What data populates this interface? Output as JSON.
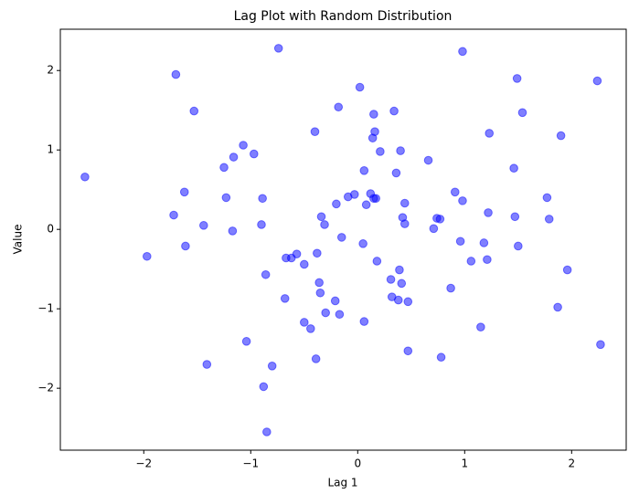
{
  "chart_data": {
    "type": "scatter",
    "title": "Lag Plot with Random Distribution",
    "x_label": "Lag 1",
    "y_label": "Value",
    "color": "#0000ff",
    "alpha": 0.5,
    "xlim": [
      -2.78,
      2.51
    ],
    "ylim": [
      -2.78,
      2.52
    ],
    "xticks": [
      {
        "value": -2,
        "label": "−2"
      },
      {
        "value": -1,
        "label": "−1"
      },
      0,
      1,
      2
    ],
    "yticks": [
      {
        "value": -2,
        "label": "−2"
      },
      {
        "value": -1,
        "label": "−1"
      },
      0,
      1,
      2
    ],
    "x": [
      -2.55,
      -1.97,
      -1.7,
      -1.72,
      -1.62,
      -1.61,
      -1.53,
      -1.44,
      -1.41,
      -1.25,
      -1.23,
      -1.17,
      -1.16,
      -1.07,
      -1.04,
      -0.97,
      -0.9,
      -0.89,
      -0.88,
      -0.86,
      -0.85,
      -0.8,
      -0.74,
      -0.68,
      -0.67,
      -0.62,
      -0.57,
      -0.5,
      -0.5,
      -0.44,
      -0.4,
      -0.39,
      -0.38,
      -0.36,
      -0.35,
      -0.34,
      -0.31,
      -0.3,
      -0.21,
      -0.2,
      -0.18,
      -0.17,
      -0.15,
      -0.09,
      -0.03,
      0.02,
      0.05,
      0.06,
      0.06,
      0.08,
      0.12,
      0.14,
      0.15,
      0.15,
      0.16,
      0.17,
      0.18,
      0.21,
      0.31,
      0.32,
      0.34,
      0.36,
      0.38,
      0.39,
      0.4,
      0.41,
      0.42,
      0.44,
      0.44,
      0.47,
      0.47,
      0.66,
      0.71,
      0.74,
      0.77,
      0.78,
      0.87,
      0.91,
      0.96,
      0.98,
      0.98,
      1.06,
      1.15,
      1.18,
      1.21,
      1.22,
      1.23,
      1.46,
      1.47,
      1.49,
      1.5,
      1.54,
      1.77,
      1.79,
      1.87,
      1.9,
      1.96,
      2.24,
      2.27
    ],
    "y": [
      0.66,
      -0.34,
      1.95,
      0.18,
      0.47,
      -0.21,
      1.49,
      0.05,
      -1.7,
      0.78,
      0.4,
      -0.02,
      0.91,
      1.06,
      -1.41,
      0.95,
      0.06,
      0.39,
      -1.98,
      -0.57,
      -2.55,
      -1.72,
      2.28,
      -0.87,
      -0.36,
      -0.36,
      -0.31,
      -0.44,
      -1.17,
      -1.25,
      1.23,
      -1.63,
      -0.3,
      -0.67,
      -0.8,
      0.16,
      0.06,
      -1.05,
      -0.9,
      0.32,
      1.54,
      -1.07,
      -0.1,
      0.41,
      0.44,
      1.79,
      -0.18,
      0.74,
      -1.16,
      0.31,
      0.45,
      1.15,
      1.45,
      0.39,
      1.23,
      0.39,
      -0.4,
      0.98,
      -0.63,
      -0.85,
      1.49,
      0.71,
      -0.89,
      -0.51,
      0.99,
      -0.68,
      0.15,
      0.07,
      0.33,
      -0.91,
      -1.53,
      0.87,
      0.01,
      0.14,
      0.13,
      -1.61,
      -0.74,
      0.47,
      -0.15,
      2.24,
      0.36,
      -0.4,
      -1.23,
      -0.17,
      -0.38,
      0.21,
      1.21,
      0.77,
      0.16,
      1.9,
      -0.21,
      1.47,
      0.4,
      0.13,
      -0.98,
      1.18,
      -0.51,
      1.87,
      -1.45
    ]
  }
}
